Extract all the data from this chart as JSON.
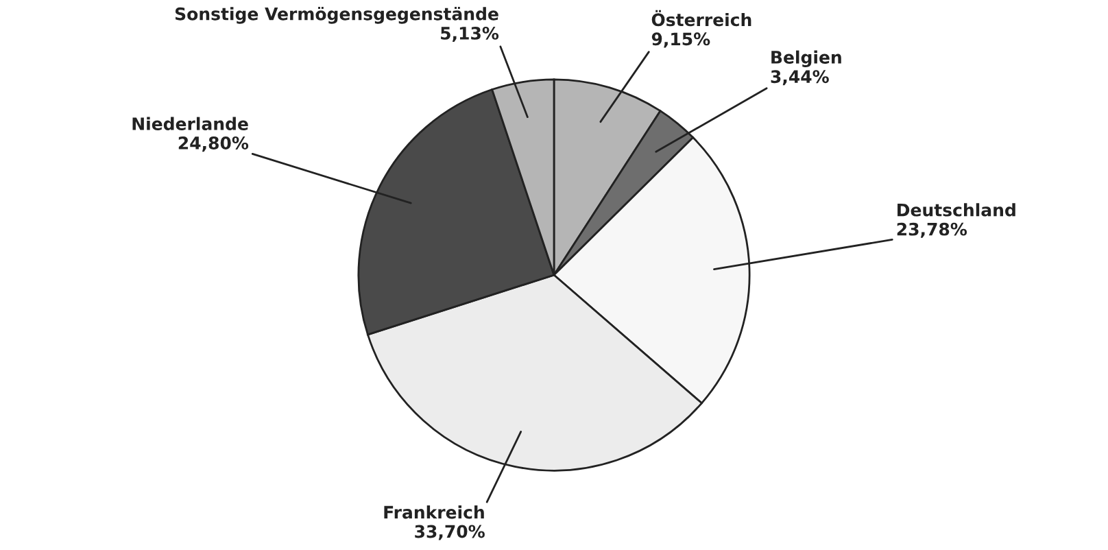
{
  "chart_data": {
    "type": "pie",
    "categories": [
      "Österreich",
      "Belgien",
      "Deutschland",
      "Frankreich",
      "Niederlande",
      "Sonstige Vermögensgegenstände"
    ],
    "values": [
      9.15,
      3.44,
      23.78,
      33.7,
      24.8,
      5.13
    ],
    "colors": [
      "#b5b5b5",
      "#6e6e6e",
      "#f7f7f7",
      "#ececec",
      "#4a4a4a",
      "#b5b5b5"
    ],
    "value_labels": [
      "9,15%",
      "3,44%",
      "23,78%",
      "33,70%",
      "24,80%",
      "5,13%"
    ],
    "legend": false
  }
}
